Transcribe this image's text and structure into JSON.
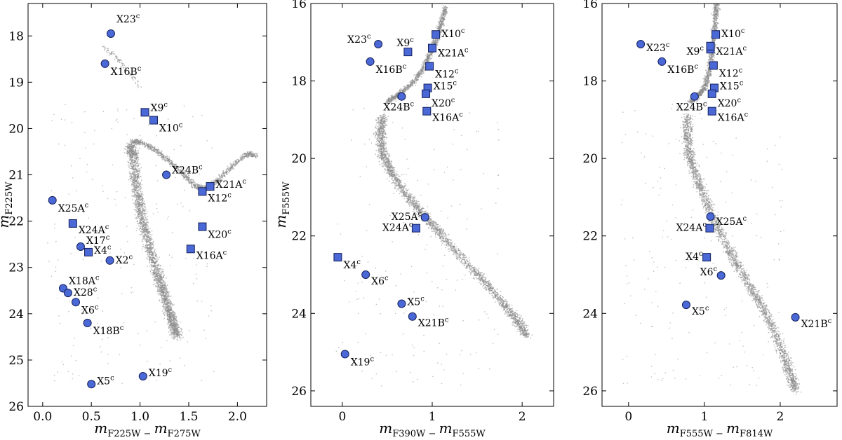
{
  "colors": {
    "marker": "#4a68d6",
    "marker_edge": "#15205a",
    "cloud": "#8a8a8a"
  },
  "chart_data": [
    {
      "type": "scatter",
      "title": "",
      "xlabel": {
        "main": "m",
        "sub": "F225W − ",
        "main2": "m",
        "sub2": "F275W"
      },
      "ylabel": {
        "main": "m",
        "sub": "F225W"
      },
      "xlim": [
        -0.15,
        2.3
      ],
      "ylim": [
        26,
        17.3
      ],
      "y_inverted": true,
      "xticks": [
        "0.0",
        "0.5",
        "1.0",
        "1.5",
        "2.0"
      ],
      "xtick_values": [
        0.0,
        0.5,
        1.0,
        1.5,
        2.0
      ],
      "yticks": [
        "18",
        "19",
        "20",
        "21",
        "22",
        "23",
        "24",
        "25",
        "26"
      ],
      "ytick_values": [
        18,
        19,
        20,
        21,
        22,
        23,
        24,
        25,
        26
      ],
      "cloud_sequence": [
        [
          0.9,
          20.35
        ],
        [
          0.93,
          20.6
        ],
        [
          0.95,
          21.1
        ],
        [
          0.99,
          21.6
        ],
        [
          1.04,
          22.1
        ],
        [
          1.1,
          22.6
        ],
        [
          1.17,
          23.1
        ],
        [
          1.23,
          23.5
        ],
        [
          1.29,
          23.9
        ],
        [
          1.34,
          24.2
        ],
        [
          1.38,
          24.5
        ]
      ],
      "cloud_branch": [
        [
          0.92,
          20.28
        ],
        [
          1.02,
          20.3
        ],
        [
          1.15,
          20.45
        ],
        [
          1.3,
          20.7
        ],
        [
          1.45,
          21.0
        ],
        [
          1.57,
          21.25
        ],
        [
          1.67,
          21.3
        ],
        [
          1.8,
          21.12
        ],
        [
          1.95,
          20.8
        ],
        [
          2.1,
          20.55
        ],
        [
          2.2,
          20.6
        ]
      ],
      "cloud_giants": [
        [
          0.62,
          18.25
        ],
        [
          0.75,
          18.45
        ],
        [
          0.88,
          18.75
        ],
        [
          1.0,
          19.1
        ]
      ],
      "stars": [
        {
          "label": "X23",
          "x": 0.7,
          "y": 17.95,
          "shape": "circle",
          "dx": 8,
          "dy": -16
        },
        {
          "label": "X16B",
          "x": 0.64,
          "y": 18.6,
          "shape": "circle",
          "dx": 8,
          "dy": 16
        },
        {
          "label": "X9",
          "x": 1.05,
          "y": 19.65,
          "shape": "square",
          "dx": 8,
          "dy": -2
        },
        {
          "label": "X10",
          "x": 1.14,
          "y": 19.82,
          "shape": "square",
          "dx": 8,
          "dy": 16
        },
        {
          "label": "X24B",
          "x": 1.27,
          "y": 21.0,
          "shape": "circle",
          "dx": 8,
          "dy": -2
        },
        {
          "label": "X21A",
          "x": 1.72,
          "y": 21.25,
          "shape": "square",
          "dx": 8,
          "dy": 2
        },
        {
          "label": "X12",
          "x": 1.64,
          "y": 21.36,
          "shape": "square",
          "dx": 8,
          "dy": 14
        },
        {
          "label": "X25A",
          "x": 0.1,
          "y": 21.55,
          "shape": "circle",
          "dx": 8,
          "dy": 16
        },
        {
          "label": "X24A",
          "x": 0.31,
          "y": 22.05,
          "shape": "square",
          "dx": 8,
          "dy": 14
        },
        {
          "label": "X20",
          "x": 1.64,
          "y": 22.12,
          "shape": "square",
          "dx": 8,
          "dy": 16
        },
        {
          "label": "X17",
          "x": 0.39,
          "y": 22.55,
          "shape": "circle",
          "dx": 8,
          "dy": -4
        },
        {
          "label": "X16A",
          "x": 1.52,
          "y": 22.6,
          "shape": "square",
          "dx": 8,
          "dy": 14
        },
        {
          "label": "X4",
          "x": 0.47,
          "y": 22.67,
          "shape": "square",
          "dx": 8,
          "dy": 2
        },
        {
          "label": "X2",
          "x": 0.69,
          "y": 22.85,
          "shape": "circle",
          "dx": 8,
          "dy": 4
        },
        {
          "label": "X18A",
          "x": 0.21,
          "y": 23.45,
          "shape": "circle",
          "dx": 8,
          "dy": -6
        },
        {
          "label": "X28",
          "x": 0.26,
          "y": 23.55,
          "shape": "circle",
          "dx": 8,
          "dy": 4
        },
        {
          "label": "X6",
          "x": 0.34,
          "y": 23.75,
          "shape": "circle",
          "dx": 8,
          "dy": 16
        },
        {
          "label": "X18B",
          "x": 0.46,
          "y": 24.2,
          "shape": "circle",
          "dx": 8,
          "dy": 16
        },
        {
          "label": "X19",
          "x": 1.03,
          "y": 25.35,
          "shape": "circle",
          "dx": 8,
          "dy": 0
        },
        {
          "label": "X5",
          "x": 0.5,
          "y": 25.52,
          "shape": "circle",
          "dx": 8,
          "dy": 0
        }
      ],
      "sup": "c"
    },
    {
      "type": "scatter",
      "title": "",
      "xlabel": {
        "main": "m",
        "sub": "F390W − ",
        "main2": "m",
        "sub2": "F555W"
      },
      "ylabel": {
        "main": "m",
        "sub": "F555W"
      },
      "xlim": [
        -0.35,
        2.35
      ],
      "ylim": [
        26.4,
        16
      ],
      "y_inverted": true,
      "xticks": [
        "0",
        "1",
        "2"
      ],
      "xtick_values": [
        0,
        1,
        2
      ],
      "yticks": [
        "16",
        "18",
        "20",
        "22",
        "24",
        "26"
      ],
      "ytick_values": [
        16,
        18,
        20,
        22,
        24,
        26
      ],
      "cloud_sequence": [
        [
          0.45,
          18.9
        ],
        [
          0.42,
          19.4
        ],
        [
          0.45,
          19.9
        ],
        [
          0.55,
          20.4
        ],
        [
          0.7,
          20.9
        ],
        [
          0.88,
          21.4
        ],
        [
          1.08,
          21.9
        ],
        [
          1.3,
          22.5
        ],
        [
          1.55,
          23.1
        ],
        [
          1.78,
          23.7
        ],
        [
          1.95,
          24.2
        ],
        [
          2.05,
          24.6
        ]
      ],
      "cloud_branch": [
        [
          0.5,
          18.55
        ],
        [
          0.62,
          18.35
        ],
        [
          0.78,
          18.05
        ],
        [
          0.9,
          17.7
        ],
        [
          0.98,
          17.3
        ],
        [
          1.05,
          16.9
        ],
        [
          1.1,
          16.5
        ],
        [
          1.15,
          16.1
        ]
      ],
      "cloud_giants": [],
      "stars": [
        {
          "label": "X23",
          "x": 0.4,
          "y": 17.05,
          "shape": "circle",
          "dx": -44,
          "dy": -2
        },
        {
          "label": "X9",
          "x": 0.73,
          "y": 17.25,
          "shape": "square",
          "dx": -16,
          "dy": -8
        },
        {
          "label": "X10",
          "x": 1.04,
          "y": 16.8,
          "shape": "square",
          "dx": 8,
          "dy": 4
        },
        {
          "label": "X21A",
          "x": 1.0,
          "y": 17.15,
          "shape": "square",
          "dx": 8,
          "dy": 12
        },
        {
          "label": "X16B",
          "x": 0.31,
          "y": 17.5,
          "shape": "circle",
          "dx": 8,
          "dy": 16
        },
        {
          "label": "X12",
          "x": 0.97,
          "y": 17.62,
          "shape": "square",
          "dx": 8,
          "dy": 16
        },
        {
          "label": "X15",
          "x": 0.95,
          "y": 18.18,
          "shape": "square",
          "dx": 8,
          "dy": 2
        },
        {
          "label": "X24B",
          "x": 0.66,
          "y": 18.4,
          "shape": "circle",
          "dx": -26,
          "dy": 20
        },
        {
          "label": "X20",
          "x": 0.93,
          "y": 18.33,
          "shape": "square",
          "dx": 8,
          "dy": 18
        },
        {
          "label": "X16A",
          "x": 0.94,
          "y": 18.78,
          "shape": "square",
          "dx": 8,
          "dy": 14
        },
        {
          "label": "X25A",
          "x": 0.92,
          "y": 21.52,
          "shape": "circle",
          "dx": -48,
          "dy": 4
        },
        {
          "label": "X24A",
          "x": 0.82,
          "y": 21.8,
          "shape": "square",
          "dx": -48,
          "dy": 4
        },
        {
          "label": "X4",
          "x": -0.05,
          "y": 22.55,
          "shape": "square",
          "dx": 8,
          "dy": 16
        },
        {
          "label": "X6",
          "x": 0.26,
          "y": 23.0,
          "shape": "circle",
          "dx": 8,
          "dy": 14
        },
        {
          "label": "X5",
          "x": 0.66,
          "y": 23.75,
          "shape": "circle",
          "dx": 8,
          "dy": 2
        },
        {
          "label": "X21B",
          "x": 0.78,
          "y": 24.08,
          "shape": "circle",
          "dx": 8,
          "dy": 14
        },
        {
          "label": "X19",
          "x": 0.03,
          "y": 25.05,
          "shape": "circle",
          "dx": 8,
          "dy": 16
        }
      ],
      "sup": "c"
    },
    {
      "type": "scatter",
      "title": "",
      "xlabel": {
        "main": "m",
        "sub": "F555W − ",
        "main2": "m",
        "sub2": "F814W"
      },
      "ylabel": {
        "main": "",
        "sub": ""
      },
      "xlim": [
        -0.35,
        2.75
      ],
      "ylim": [
        26.4,
        16
      ],
      "y_inverted": true,
      "xticks": [
        "0",
        "1",
        "2"
      ],
      "xtick_values": [
        0,
        1,
        2
      ],
      "yticks": [
        "16",
        "18",
        "20",
        "22",
        "24",
        "26"
      ],
      "ytick_values": [
        16,
        18,
        20,
        22,
        24,
        26
      ],
      "cloud_sequence": [
        [
          0.78,
          18.9
        ],
        [
          0.77,
          19.4
        ],
        [
          0.8,
          19.9
        ],
        [
          0.88,
          20.4
        ],
        [
          0.98,
          20.9
        ],
        [
          1.1,
          21.5
        ],
        [
          1.25,
          22.1
        ],
        [
          1.42,
          22.7
        ],
        [
          1.6,
          23.3
        ],
        [
          1.78,
          23.9
        ],
        [
          1.93,
          24.5
        ],
        [
          2.05,
          25.1
        ],
        [
          2.14,
          25.6
        ],
        [
          2.2,
          26.0
        ]
      ],
      "cloud_branch": [
        [
          0.82,
          18.55
        ],
        [
          0.9,
          18.4
        ],
        [
          1.0,
          18.2
        ],
        [
          1.06,
          17.8
        ],
        [
          1.1,
          17.3
        ],
        [
          1.13,
          16.8
        ],
        [
          1.15,
          16.3
        ],
        [
          1.16,
          16.0
        ]
      ],
      "cloud_giants": [],
      "stars": [
        {
          "label": "X23",
          "x": 0.16,
          "y": 17.05,
          "shape": "circle",
          "dx": 8,
          "dy": 10
        },
        {
          "label": "X10",
          "x": 1.15,
          "y": 16.8,
          "shape": "square",
          "dx": 8,
          "dy": 4
        },
        {
          "label": "X9",
          "x": 1.08,
          "y": 17.18,
          "shape": "square",
          "dx": -34,
          "dy": 8
        },
        {
          "label": "X21A",
          "x": 1.08,
          "y": 17.1,
          "shape": "square",
          "dx": 8,
          "dy": 12
        },
        {
          "label": "X16B",
          "x": 0.44,
          "y": 17.5,
          "shape": "circle",
          "dx": 8,
          "dy": 16
        },
        {
          "label": "X12",
          "x": 1.12,
          "y": 17.6,
          "shape": "square",
          "dx": 8,
          "dy": 16
        },
        {
          "label": "X15",
          "x": 1.13,
          "y": 18.18,
          "shape": "square",
          "dx": 8,
          "dy": 2
        },
        {
          "label": "X24B",
          "x": 0.87,
          "y": 18.4,
          "shape": "circle",
          "dx": -26,
          "dy": 20
        },
        {
          "label": "X20",
          "x": 1.1,
          "y": 18.33,
          "shape": "square",
          "dx": 8,
          "dy": 18
        },
        {
          "label": "X16A",
          "x": 1.1,
          "y": 18.78,
          "shape": "square",
          "dx": 8,
          "dy": 14
        },
        {
          "label": "X25A",
          "x": 1.08,
          "y": 21.5,
          "shape": "circle",
          "dx": 8,
          "dy": 12
        },
        {
          "label": "X24A",
          "x": 1.07,
          "y": 21.8,
          "shape": "square",
          "dx": -48,
          "dy": 4
        },
        {
          "label": "X4",
          "x": 1.03,
          "y": 22.55,
          "shape": "square",
          "dx": -30,
          "dy": 4
        },
        {
          "label": "X6",
          "x": 1.22,
          "y": 23.02,
          "shape": "circle",
          "dx": -30,
          "dy": 0
        },
        {
          "label": "X5",
          "x": 0.76,
          "y": 23.78,
          "shape": "circle",
          "dx": 8,
          "dy": 14
        },
        {
          "label": "X21B",
          "x": 2.2,
          "y": 24.1,
          "shape": "circle",
          "dx": 8,
          "dy": 14
        }
      ],
      "sup": "c"
    }
  ]
}
